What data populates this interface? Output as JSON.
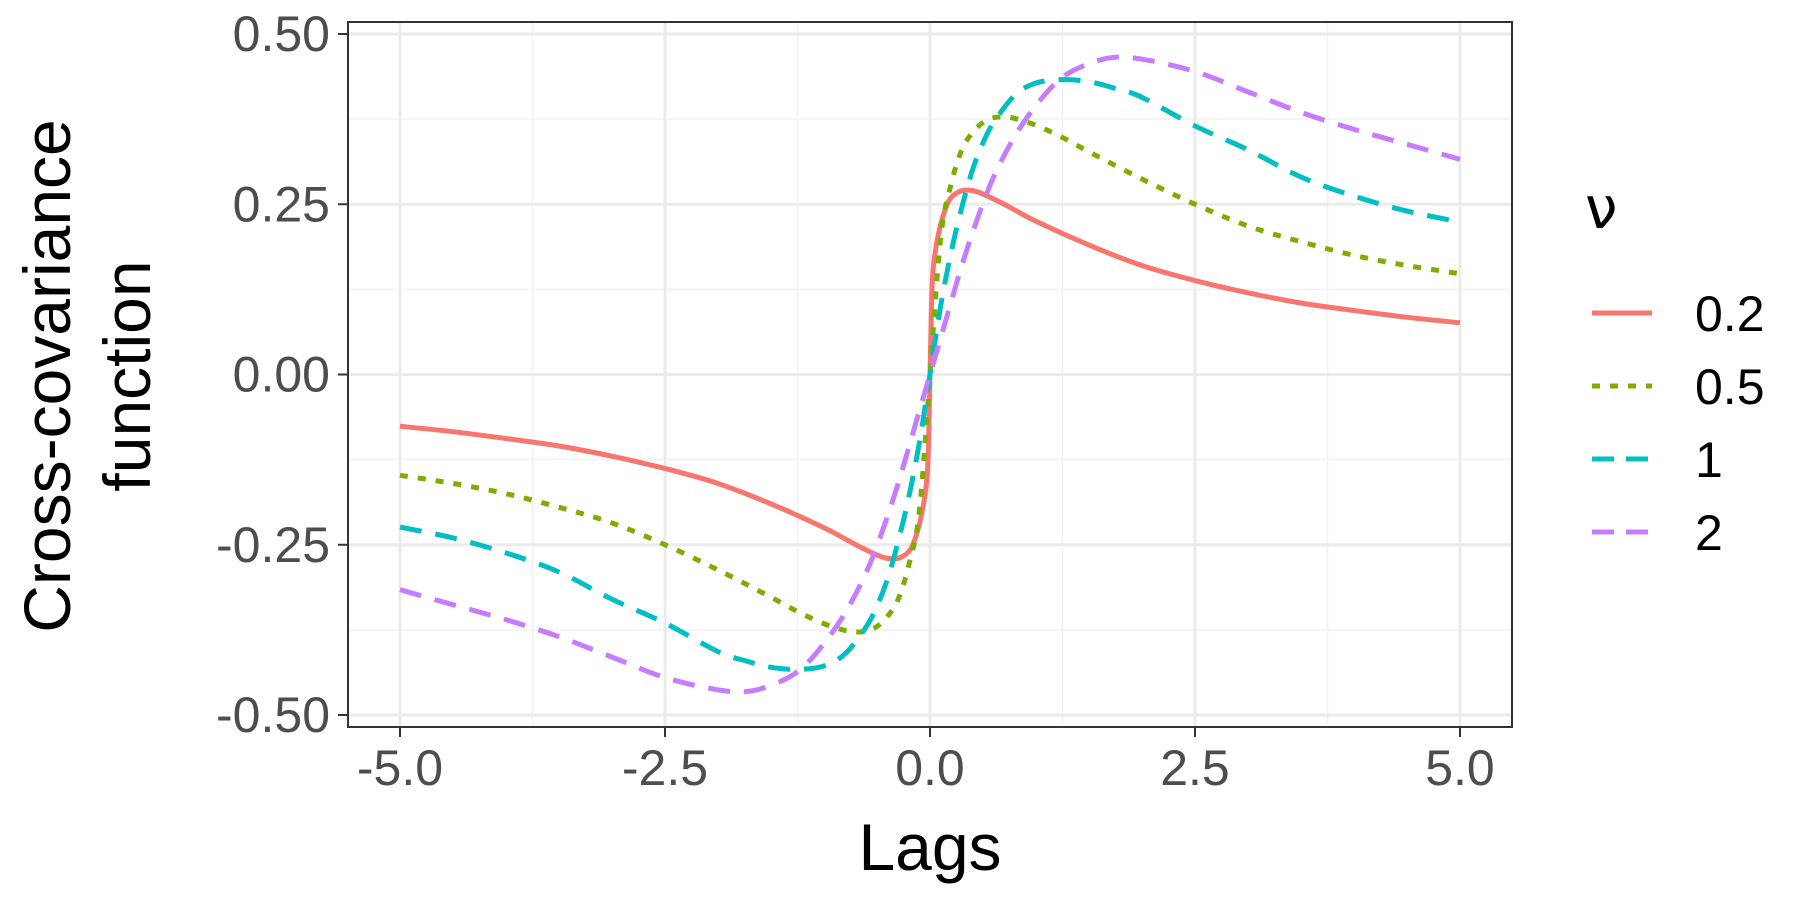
{
  "chart_data": {
    "type": "line",
    "title": "",
    "xlabel": "Lags",
    "ylabel": [
      "Cross-covariance",
      "function"
    ],
    "xlim": [
      -5.0,
      5.0
    ],
    "ylim": [
      -0.5,
      0.5
    ],
    "x_ticks": [
      "-5.0",
      "-2.5",
      "0.0",
      "2.5",
      "5.0"
    ],
    "x_tick_values": [
      -5.0,
      -2.5,
      0.0,
      2.5,
      5.0
    ],
    "y_ticks": [
      "-0.50",
      "-0.25",
      "0.00",
      "0.25",
      "0.50"
    ],
    "y_tick_values": [
      -0.5,
      -0.25,
      0.0,
      0.25,
      0.5
    ],
    "grid": true,
    "legend": {
      "title": "ν",
      "placement": "right"
    },
    "series": [
      {
        "name": "0.2",
        "color": "#F8766D",
        "line_style": "solid",
        "x": [
          0,
          0.02,
          0.05,
          0.1,
          0.15,
          0.2,
          0.3,
          0.4,
          0.5,
          0.7,
          1.0,
          1.5,
          2.0,
          2.5,
          3.0,
          3.5,
          4.0,
          4.5,
          5.0
        ],
        "y": [
          0,
          0.13,
          0.18,
          0.22,
          0.245,
          0.26,
          0.27,
          0.27,
          0.265,
          0.25,
          0.225,
          0.19,
          0.16,
          0.138,
          0.12,
          0.105,
          0.094,
          0.084,
          0.076
        ]
      },
      {
        "name": "0.5",
        "color": "#7CAE00",
        "line_style": "dotted",
        "x": [
          0,
          0.1,
          0.2,
          0.3,
          0.4,
          0.5,
          0.6,
          0.7,
          0.8,
          1.0,
          1.25,
          1.5,
          2.0,
          2.5,
          3.0,
          3.5,
          4.0,
          4.5,
          5.0
        ],
        "y": [
          0,
          0.2,
          0.28,
          0.33,
          0.355,
          0.37,
          0.377,
          0.378,
          0.376,
          0.366,
          0.348,
          0.327,
          0.287,
          0.25,
          0.218,
          0.195,
          0.175,
          0.16,
          0.148
        ]
      },
      {
        "name": "1",
        "color": "#00BFC4",
        "line_style": "dashed",
        "x": [
          0,
          0.1,
          0.2,
          0.3,
          0.4,
          0.5,
          0.6,
          0.8,
          1.0,
          1.25,
          1.5,
          1.75,
          2.0,
          2.5,
          3.0,
          3.5,
          4.0,
          4.5,
          5.0
        ],
        "y": [
          0,
          0.1,
          0.18,
          0.245,
          0.3,
          0.34,
          0.37,
          0.41,
          0.428,
          0.433,
          0.43,
          0.42,
          0.407,
          0.365,
          0.33,
          0.29,
          0.262,
          0.24,
          0.224
        ]
      },
      {
        "name": "2",
        "color": "#C77CFF",
        "line_style": "dashed",
        "x": [
          0,
          0.15,
          0.3,
          0.45,
          0.6,
          0.8,
          1.0,
          1.2,
          1.4,
          1.7,
          2.0,
          2.5,
          3.0,
          3.5,
          4.0,
          4.5,
          5.0
        ],
        "y": [
          0,
          0.08,
          0.16,
          0.23,
          0.29,
          0.35,
          0.395,
          0.43,
          0.45,
          0.465,
          0.463,
          0.445,
          0.415,
          0.385,
          0.36,
          0.338,
          0.316
        ]
      }
    ]
  }
}
